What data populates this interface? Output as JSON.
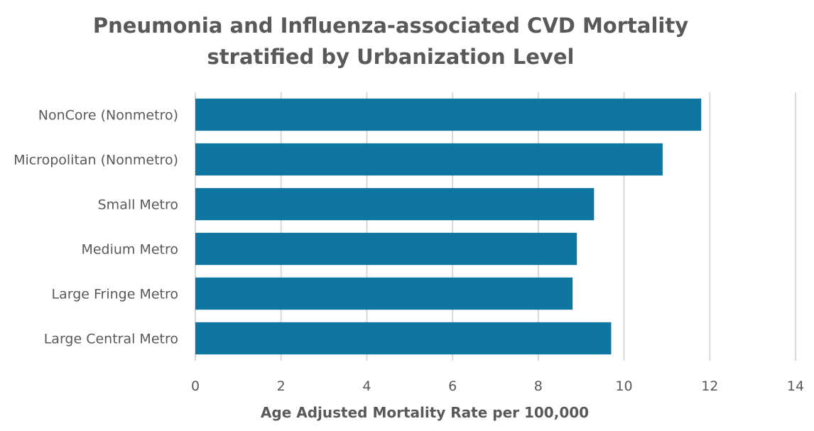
{
  "chart_data": {
    "type": "bar",
    "orientation": "horizontal",
    "title_line1": "Pneumonia and Influenza-associated CVD Mortality",
    "title_line2": "stratified by Urbanization Level",
    "xlabel": "Age Adjusted Mortality Rate per 100,000",
    "ylabel": "",
    "categories": [
      "NonCore (Nonmetro)",
      "Micropolitan (Nonmetro)",
      "Small Metro",
      "Medium Metro",
      "Large Fringe Metro",
      "Large Central Metro"
    ],
    "values": [
      11.8,
      10.9,
      9.3,
      8.9,
      8.8,
      9.7
    ],
    "xlim": [
      0,
      14
    ],
    "xticks": [
      "0",
      "2",
      "4",
      "6",
      "8",
      "10",
      "12",
      "14"
    ],
    "grid": true,
    "bar_color": "#0e76a0"
  }
}
